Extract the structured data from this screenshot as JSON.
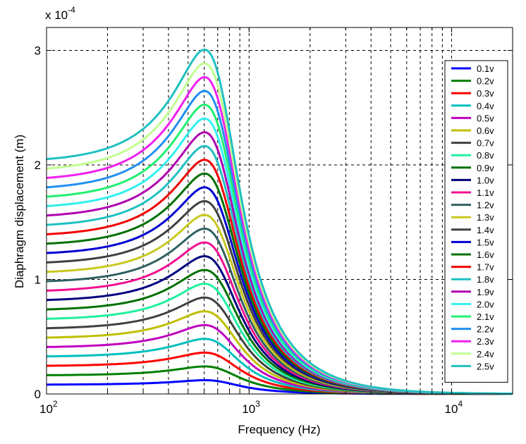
{
  "chart_data": {
    "type": "line",
    "title": "",
    "xlabel": "Frequency (Hz)",
    "ylabel": "Diaphragm displacement (m)",
    "xscale": "log",
    "xlim": [
      100,
      20000
    ],
    "ylim": [
      0,
      3.2
    ],
    "y_multiplier_label": {
      "base": "x 10",
      "exponent": "-4"
    },
    "grid": true,
    "legend_position": "right",
    "x_ticks": [
      {
        "value": 100,
        "base": "10",
        "exp": "2"
      },
      {
        "value": 1000,
        "base": "10",
        "exp": "3"
      },
      {
        "value": 10000,
        "base": "10",
        "exp": "4"
      }
    ],
    "y_ticks": [
      {
        "value": 0,
        "label": "0"
      },
      {
        "value": 1,
        "label": "1"
      },
      {
        "value": 2,
        "label": "2"
      },
      {
        "value": 3,
        "label": "3"
      }
    ],
    "model": {
      "low_freq_per_volt": 0.808,
      "resonance_hz": 700,
      "damping": 0.36
    },
    "x": [
      100,
      150,
      200,
      300,
      400,
      500,
      600,
      700,
      800,
      1000,
      1200,
      1500,
      2000,
      3000,
      5000,
      10000,
      20000
    ],
    "series": [
      {
        "name": "0.1v",
        "color": "#0000ff"
      },
      {
        "name": "0.2v",
        "color": "#008000"
      },
      {
        "name": "0.3v",
        "color": "#ff0000"
      },
      {
        "name": "0.4v",
        "color": "#00bfbf"
      },
      {
        "name": "0.5v",
        "color": "#bf00bf"
      },
      {
        "name": "0.6v",
        "color": "#bfbf00"
      },
      {
        "name": "0.7v",
        "color": "#404040"
      },
      {
        "name": "0.8v",
        "color": "#20f0a0"
      },
      {
        "name": "0.9v",
        "color": "#007000"
      },
      {
        "name": "1.0v",
        "color": "#000080"
      },
      {
        "name": "1.1v",
        "color": "#f01090"
      },
      {
        "name": "1.2v",
        "color": "#306060"
      },
      {
        "name": "1.3v",
        "color": "#c8c820"
      },
      {
        "name": "1.4v",
        "color": "#404040"
      },
      {
        "name": "1.5v",
        "color": "#0000d0"
      },
      {
        "name": "1.6v",
        "color": "#007000"
      },
      {
        "name": "1.7v",
        "color": "#f00000"
      },
      {
        "name": "1.8v",
        "color": "#20c0c0"
      },
      {
        "name": "1.9v",
        "color": "#b000b0"
      },
      {
        "name": "2.0v",
        "color": "#30f0f0"
      },
      {
        "name": "2.1v",
        "color": "#20f070"
      },
      {
        "name": "2.2v",
        "color": "#2090f0"
      },
      {
        "name": "2.3v",
        "color": "#f020f0"
      },
      {
        "name": "2.4v",
        "color": "#c0ff90"
      },
      {
        "name": "2.5v",
        "color": "#20c0c0"
      }
    ]
  }
}
